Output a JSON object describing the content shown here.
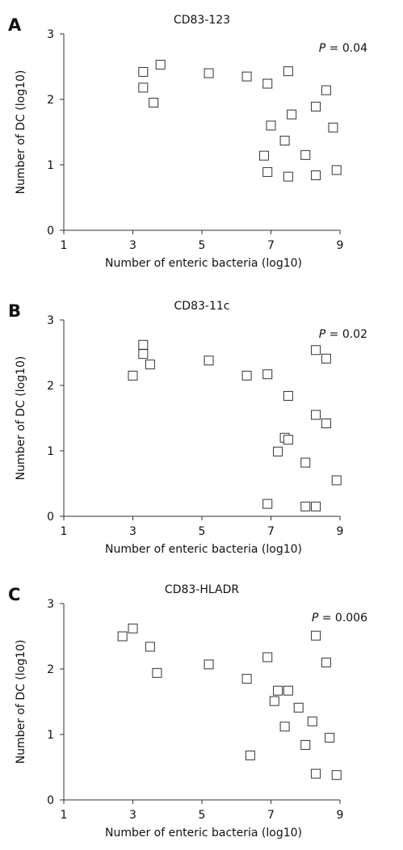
{
  "chart_data": [
    {
      "type": "scatter",
      "panel": "A",
      "title": "CD83-123",
      "xlabel": "Number of enteric bacteria (log10)",
      "ylabel": "Number of DC (log10)",
      "xlim": [
        1,
        9
      ],
      "ylim": [
        0,
        3
      ],
      "xticks": [
        "1",
        "3",
        "5",
        "7",
        "9"
      ],
      "yticks": [
        "0",
        "1",
        "2",
        "3"
      ],
      "p_label": "P",
      "p_value": "= 0.04",
      "points": [
        {
          "x": 3.3,
          "y": 2.42
        },
        {
          "x": 3.3,
          "y": 2.18
        },
        {
          "x": 3.6,
          "y": 1.95
        },
        {
          "x": 3.8,
          "y": 2.53
        },
        {
          "x": 5.2,
          "y": 2.4
        },
        {
          "x": 6.3,
          "y": 2.35
        },
        {
          "x": 6.9,
          "y": 2.24
        },
        {
          "x": 7.5,
          "y": 2.43
        },
        {
          "x": 8.6,
          "y": 2.14
        },
        {
          "x": 8.3,
          "y": 1.89
        },
        {
          "x": 7.6,
          "y": 1.77
        },
        {
          "x": 7.0,
          "y": 1.6
        },
        {
          "x": 8.8,
          "y": 1.57
        },
        {
          "x": 7.4,
          "y": 1.37
        },
        {
          "x": 6.8,
          "y": 1.14
        },
        {
          "x": 8.0,
          "y": 1.15
        },
        {
          "x": 6.9,
          "y": 0.89
        },
        {
          "x": 7.5,
          "y": 0.82
        },
        {
          "x": 8.3,
          "y": 0.84
        },
        {
          "x": 8.9,
          "y": 0.92
        }
      ]
    },
    {
      "type": "scatter",
      "panel": "B",
      "title": "CD83-11c",
      "xlabel": "Number of enteric bacteria (log10)",
      "ylabel": "Number of DC (log10)",
      "xlim": [
        1,
        9
      ],
      "ylim": [
        0,
        3
      ],
      "xticks": [
        "1",
        "3",
        "5",
        "7",
        "9"
      ],
      "yticks": [
        "0",
        "1",
        "2",
        "3"
      ],
      "p_label": "P",
      "p_value": "= 0.02",
      "points": [
        {
          "x": 3.0,
          "y": 2.15
        },
        {
          "x": 3.3,
          "y": 2.62
        },
        {
          "x": 3.3,
          "y": 2.48
        },
        {
          "x": 3.5,
          "y": 2.32
        },
        {
          "x": 5.2,
          "y": 2.38
        },
        {
          "x": 6.3,
          "y": 2.15
        },
        {
          "x": 6.9,
          "y": 2.17
        },
        {
          "x": 8.3,
          "y": 2.54
        },
        {
          "x": 8.6,
          "y": 2.41
        },
        {
          "x": 7.5,
          "y": 1.84
        },
        {
          "x": 8.3,
          "y": 1.55
        },
        {
          "x": 8.6,
          "y": 1.42
        },
        {
          "x": 7.4,
          "y": 1.2
        },
        {
          "x": 7.5,
          "y": 1.17
        },
        {
          "x": 7.2,
          "y": 0.99
        },
        {
          "x": 8.0,
          "y": 0.82
        },
        {
          "x": 8.9,
          "y": 0.55
        },
        {
          "x": 6.9,
          "y": 0.19
        },
        {
          "x": 8.0,
          "y": 0.15
        },
        {
          "x": 8.3,
          "y": 0.15
        }
      ]
    },
    {
      "type": "scatter",
      "panel": "C",
      "title": "CD83-HLADR",
      "xlabel": "Number of enteric bacteria (log10)",
      "ylabel": "Number of DC (log10)",
      "xlim": [
        1,
        9
      ],
      "ylim": [
        0,
        3
      ],
      "xticks": [
        "1",
        "3",
        "5",
        "7",
        "9"
      ],
      "yticks": [
        "0",
        "1",
        "2",
        "3"
      ],
      "p_label": "P",
      "p_value": "= 0.006",
      "points": [
        {
          "x": 2.7,
          "y": 2.5
        },
        {
          "x": 3.0,
          "y": 2.62
        },
        {
          "x": 3.5,
          "y": 2.34
        },
        {
          "x": 3.7,
          "y": 1.94
        },
        {
          "x": 5.2,
          "y": 2.07
        },
        {
          "x": 6.3,
          "y": 1.85
        },
        {
          "x": 6.9,
          "y": 2.18
        },
        {
          "x": 8.3,
          "y": 2.51
        },
        {
          "x": 8.6,
          "y": 2.1
        },
        {
          "x": 7.2,
          "y": 1.67
        },
        {
          "x": 7.5,
          "y": 1.67
        },
        {
          "x": 7.1,
          "y": 1.51
        },
        {
          "x": 7.8,
          "y": 1.41
        },
        {
          "x": 8.2,
          "y": 1.2
        },
        {
          "x": 7.4,
          "y": 1.12
        },
        {
          "x": 8.0,
          "y": 0.84
        },
        {
          "x": 8.7,
          "y": 0.95
        },
        {
          "x": 6.4,
          "y": 0.68
        },
        {
          "x": 8.3,
          "y": 0.4
        },
        {
          "x": 8.9,
          "y": 0.38
        }
      ]
    }
  ]
}
